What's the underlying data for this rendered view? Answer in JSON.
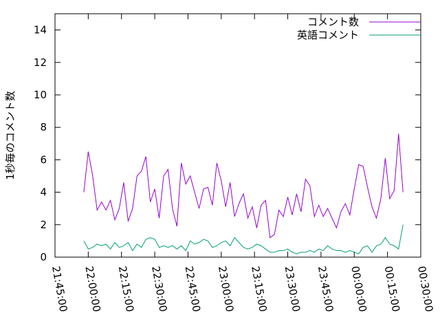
{
  "chart_data": {
    "type": "line",
    "y_label": "1秒毎のコメント数",
    "x": [
      "21:58:00",
      "22:00:00",
      "22:02:00",
      "22:04:00",
      "22:06:00",
      "22:08:00",
      "22:10:00",
      "22:12:00",
      "22:14:00",
      "22:16:00",
      "22:18:00",
      "22:20:00",
      "22:22:00",
      "22:24:00",
      "22:26:00",
      "22:28:00",
      "22:30:00",
      "22:32:00",
      "22:34:00",
      "22:36:00",
      "22:38:00",
      "22:40:00",
      "22:42:00",
      "22:44:00",
      "22:46:00",
      "22:48:00",
      "22:50:00",
      "22:52:00",
      "22:54:00",
      "22:56:00",
      "22:58:00",
      "23:00:00",
      "23:02:00",
      "23:04:00",
      "23:06:00",
      "23:08:00",
      "23:10:00",
      "23:12:00",
      "23:14:00",
      "23:16:00",
      "23:18:00",
      "23:20:00",
      "23:22:00",
      "23:24:00",
      "23:26:00",
      "23:28:00",
      "23:30:00",
      "23:32:00",
      "23:34:00",
      "23:36:00",
      "23:38:00",
      "23:40:00",
      "23:42:00",
      "23:44:00",
      "23:46:00",
      "23:48:00",
      "23:50:00",
      "23:52:00",
      "23:54:00",
      "23:56:00",
      "23:58:00",
      "00:00:00",
      "00:02:00",
      "00:04:00",
      "00:06:00",
      "00:08:00",
      "00:10:00",
      "00:12:00",
      "00:14:00",
      "00:16:00",
      "00:18:00",
      "00:20:00",
      "00:22:00"
    ],
    "series": [
      {
        "name": "コメント数",
        "color": "#9400d3",
        "values": [
          4.0,
          6.5,
          5.0,
          2.9,
          3.4,
          2.9,
          3.5,
          2.3,
          3.0,
          4.6,
          2.2,
          3.0,
          5.0,
          5.3,
          6.2,
          3.4,
          4.2,
          2.4,
          5.0,
          5.4,
          3.0,
          1.9,
          5.8,
          4.5,
          5.0,
          4.0,
          3.0,
          4.2,
          4.3,
          3.2,
          5.8,
          4.7,
          3.1,
          4.6,
          2.5,
          3.3,
          3.9,
          2.4,
          3.1,
          1.8,
          3.2,
          3.5,
          1.2,
          1.4,
          2.9,
          2.5,
          3.7,
          2.6,
          3.9,
          2.8,
          4.8,
          4.4,
          2.5,
          3.2,
          2.5,
          3.0,
          2.4,
          1.8,
          2.8,
          3.3,
          2.6,
          4.2,
          5.7,
          5.6,
          4.3,
          3.1,
          2.4,
          3.6,
          6.1,
          3.6,
          4.1,
          7.6,
          4.0
        ]
      },
      {
        "name": "英語コメント",
        "color": "#009e73",
        "values": [
          1.0,
          0.5,
          0.6,
          0.8,
          0.7,
          0.8,
          0.5,
          0.9,
          0.6,
          0.7,
          0.9,
          0.4,
          0.8,
          0.6,
          1.1,
          1.2,
          1.1,
          0.6,
          0.7,
          0.6,
          0.7,
          0.5,
          0.7,
          0.4,
          1.0,
          0.8,
          0.9,
          1.1,
          1.0,
          0.6,
          0.7,
          0.9,
          1.0,
          0.7,
          1.2,
          0.9,
          0.6,
          0.5,
          0.6,
          0.8,
          0.7,
          0.5,
          0.3,
          0.3,
          0.4,
          0.4,
          0.5,
          0.3,
          0.2,
          0.3,
          0.3,
          0.4,
          0.3,
          0.5,
          0.4,
          0.7,
          0.5,
          0.4,
          0.4,
          0.3,
          0.4,
          0.3,
          0.2,
          0.6,
          0.7,
          0.3,
          0.7,
          0.8,
          1.2,
          0.8,
          0.7,
          0.5,
          2.0
        ]
      }
    ],
    "xlim": [
      "21:45:00",
      "00:30:00"
    ],
    "xticks": [
      "21:45:00",
      "22:00:00",
      "22:15:00",
      "22:30:00",
      "22:45:00",
      "23:00:00",
      "23:15:00",
      "23:30:00",
      "23:45:00",
      "00:00:00",
      "00:15:00",
      "00:30:00"
    ],
    "ylim": [
      0,
      15
    ],
    "yticks": [
      0,
      2,
      4,
      6,
      8,
      10,
      12,
      14
    ],
    "grid": false,
    "legend": "top-right"
  }
}
